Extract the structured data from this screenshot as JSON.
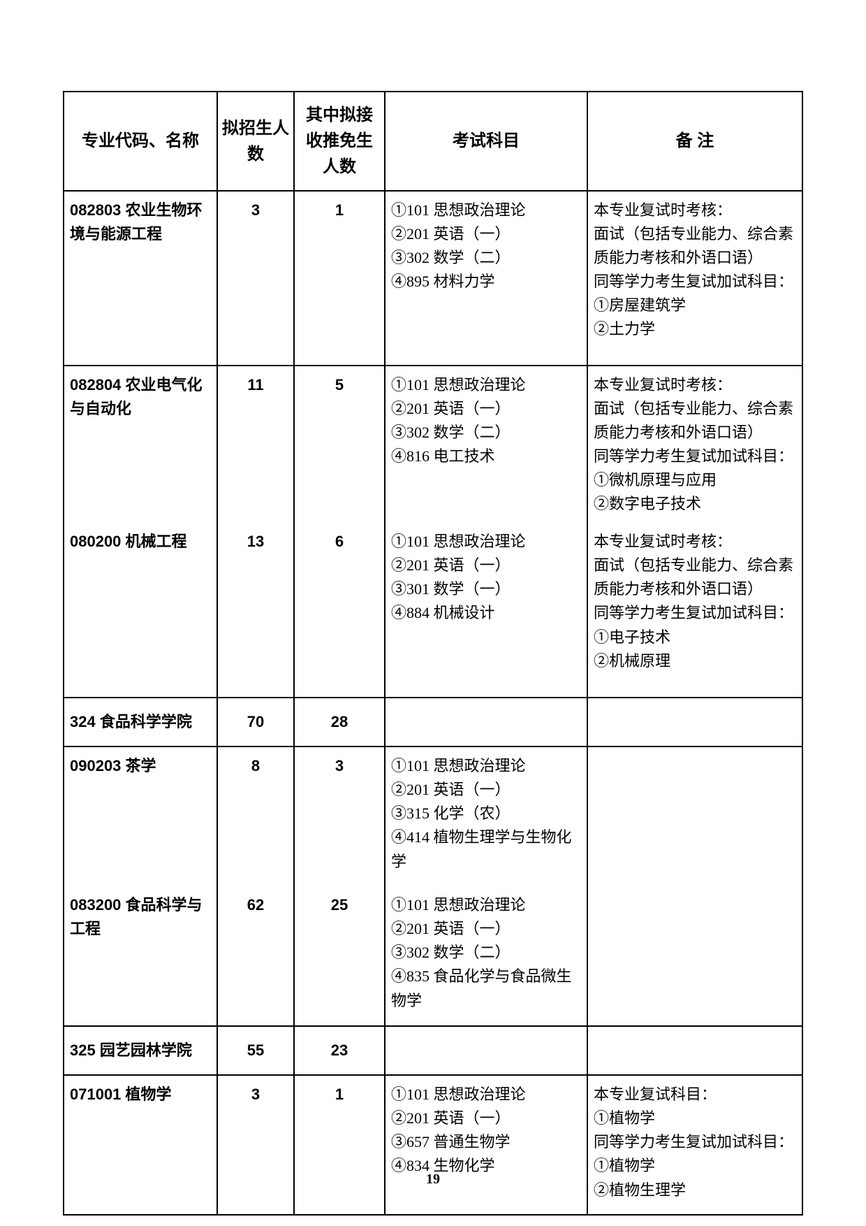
{
  "page_number": "19",
  "header": {
    "col1": "专业代码、名称",
    "col2": "拟招生人数",
    "col3": "其中拟接收推免生人数",
    "col4": "考试科目",
    "col5": "备  注"
  },
  "rows": [
    {
      "kind": "major",
      "name": "082803 农业生物环境与能源工程",
      "plan": "3",
      "tuimian": "1",
      "subjects": "①101 思想政治理论\n②201 英语（一）\n③302 数学（二）\n④895 材料力学",
      "note": "本专业复试时考核：\n面试（包括专业能力、综合素质能力考核和外语口语）\n同等学力考生复试加试科目：\n①房屋建筑学\n②土力学",
      "height": "tall"
    },
    {
      "kind": "major",
      "name": "082804 农业电气化与自动化",
      "plan": "11",
      "tuimian": "5",
      "subjects": "①101 思想政治理论\n②201 英语（一）\n③302 数学（二）\n④816 电工技术",
      "note": "本专业复试时考核：\n面试（包括专业能力、综合素质能力考核和外语口语）\n同等学力考生复试加试科目：\n①微机原理与应用\n②数字电子技术",
      "height": "mid",
      "no_bottom": true
    },
    {
      "kind": "major",
      "name": "080200 机械工程",
      "plan": "13",
      "tuimian": "6",
      "subjects": "①101 思想政治理论\n②201 英语（一）\n③301 数学（一）\n④884 机械设计",
      "note": "本专业复试时考核：\n面试（包括专业能力、综合素质能力考核和外语口语）\n同等学力考生复试加试科目：\n①电子技术\n②机械原理",
      "height": "tall",
      "no_top": true
    },
    {
      "kind": "section",
      "name": "324 食品科学学院",
      "plan": "70",
      "tuimian": "28",
      "subjects": "",
      "note": "",
      "height": "sec"
    },
    {
      "kind": "major",
      "name": "090203 茶学",
      "plan": "8",
      "tuimian": "3",
      "subjects": "①101 思想政治理论\n②201 英语（一）\n③315 化学（农）\n④414 植物生理学与生物化学",
      "note": "",
      "height": "mid",
      "no_bottom": true
    },
    {
      "kind": "major",
      "name": "083200 食品科学与工程",
      "plan": "62",
      "tuimian": "25",
      "subjects": "①101 思想政治理论\n②201 英语（一）\n③302 数学（二）\n④835 食品化学与食品微生物学",
      "note": "",
      "height": "mid",
      "no_top": true
    },
    {
      "kind": "section",
      "name": "325  园艺园林学院",
      "plan": "55",
      "tuimian": "23",
      "subjects": "",
      "note": "",
      "height": "sec"
    },
    {
      "kind": "major",
      "name": "071001 植物学",
      "plan": "3",
      "tuimian": "1",
      "subjects": "①101 思想政治理论\n②201 英语（一）\n③657 普通生物学\n④834 生物化学",
      "note": "本专业复试科目：\n①植物学\n同等学力考生复试加试科目：\n①植物学\n②植物生理学",
      "height": "mid"
    }
  ]
}
